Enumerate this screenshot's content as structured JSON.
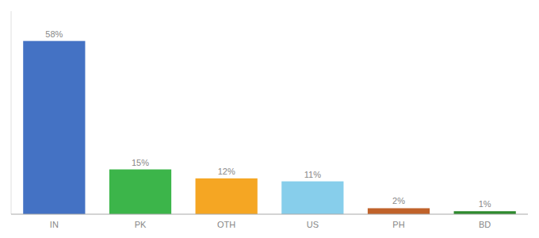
{
  "chart_data": {
    "type": "bar",
    "categories": [
      "IN",
      "PK",
      "OTH",
      "US",
      "PH",
      "BD"
    ],
    "values": [
      58,
      15,
      12,
      11,
      2,
      1
    ],
    "value_labels": [
      "58%",
      "15%",
      "12%",
      "11%",
      "2%",
      "1%"
    ],
    "colors": [
      "#4472c4",
      "#3cb54a",
      "#f5a623",
      "#87ceeb",
      "#c0622a",
      "#2d8a2d"
    ],
    "ylim": [
      0,
      68
    ],
    "data_labels": true,
    "tick_labels": "x",
    "grid": false
  }
}
